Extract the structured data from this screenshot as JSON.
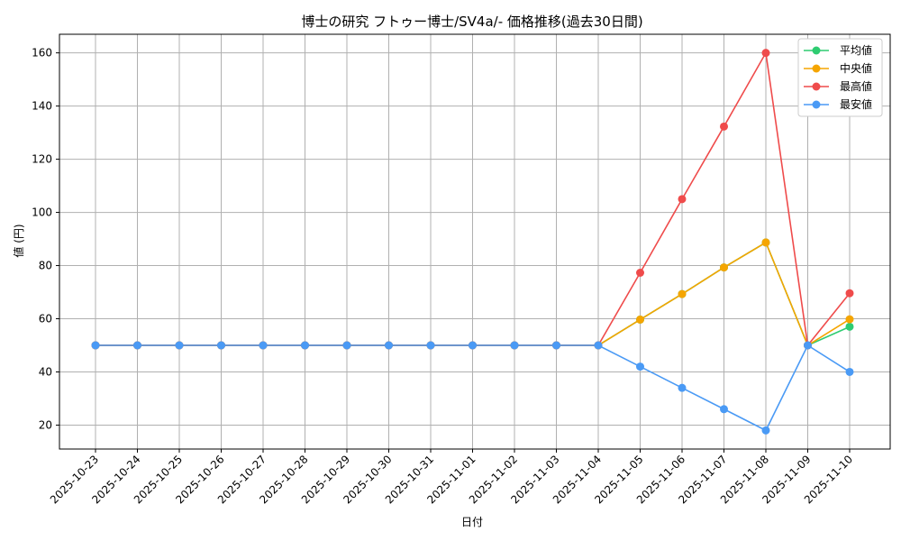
{
  "chart_data": {
    "type": "line",
    "title": "博士の研究 フトゥー博士/SV4a/- 価格推移(過去30日間)",
    "xlabel": "日付",
    "ylabel": "値 (円)",
    "ylim": [
      11,
      167
    ],
    "yticks": [
      20,
      40,
      60,
      80,
      100,
      120,
      140,
      160
    ],
    "grid": true,
    "legend_position": "top-right",
    "categories": [
      "2025-10-23",
      "2025-10-24",
      "2025-10-25",
      "2025-10-26",
      "2025-10-27",
      "2025-10-28",
      "2025-10-29",
      "2025-10-30",
      "2025-10-31",
      "2025-11-01",
      "2025-11-02",
      "2025-11-03",
      "2025-11-04",
      "2025-11-05",
      "2025-11-06",
      "2025-11-07",
      "2025-11-08",
      "2025-11-09",
      "2025-11-10"
    ],
    "series": [
      {
        "name": "平均値",
        "color": "#2ecc71",
        "values": [
          50,
          50,
          50,
          50,
          50,
          50,
          50,
          50,
          50,
          50,
          50,
          50,
          50,
          59.7,
          69.3,
          79.3,
          88.7,
          50,
          57
        ]
      },
      {
        "name": "中央値",
        "color": "#f5a500",
        "values": [
          50,
          50,
          50,
          50,
          50,
          50,
          50,
          50,
          50,
          50,
          50,
          50,
          50,
          59.7,
          69.3,
          79.3,
          88.7,
          50,
          59.8
        ]
      },
      {
        "name": "最高値",
        "color": "#ef4b4b",
        "values": [
          50,
          50,
          50,
          50,
          50,
          50,
          50,
          50,
          50,
          50,
          50,
          50,
          50,
          77.3,
          105,
          132.3,
          160,
          50,
          69.6
        ]
      },
      {
        "name": "最安値",
        "color": "#4a9af5",
        "values": [
          50,
          50,
          50,
          50,
          50,
          50,
          50,
          50,
          50,
          50,
          50,
          50,
          50,
          42,
          34,
          26,
          18,
          50,
          40
        ]
      }
    ]
  }
}
